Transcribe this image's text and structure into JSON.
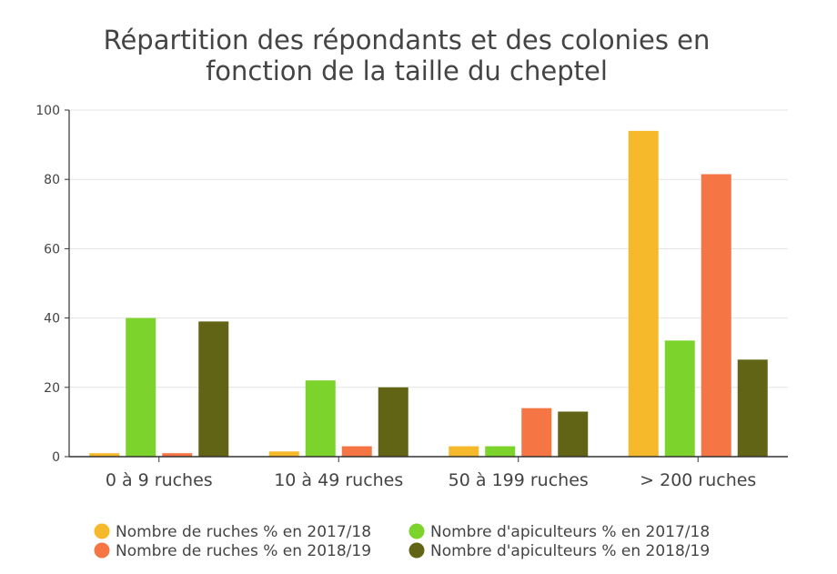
{
  "chart_data": {
    "type": "bar",
    "title_lines": [
      "Répartition des répondants et des colonies en",
      "fonction de la taille du cheptel"
    ],
    "categories": [
      "0 à 9 ruches",
      "10 à 49 ruches",
      "50 à 199 ruches",
      "> 200 ruches"
    ],
    "ylim": [
      0,
      100
    ],
    "yticks": [
      "0",
      "20",
      "40",
      "60",
      "80",
      "100"
    ],
    "grid": true,
    "legend_position": "bottom",
    "series": [
      {
        "name": "Nombre de ruches % en 2017/18",
        "color": "#F6B92B",
        "values": [
          1,
          1.5,
          3,
          94
        ]
      },
      {
        "name": "Nombre d'apiculteurs % en 2017/18",
        "color": "#7CD32B",
        "values": [
          40,
          22,
          3,
          33.5
        ]
      },
      {
        "name": "Nombre de ruches % en 2018/19",
        "color": "#F57545",
        "values": [
          1,
          3,
          14,
          81.5
        ]
      },
      {
        "name": "Nombre d'apiculteurs % en 2018/19",
        "color": "#626415",
        "values": [
          39,
          20,
          13,
          28
        ]
      }
    ]
  }
}
